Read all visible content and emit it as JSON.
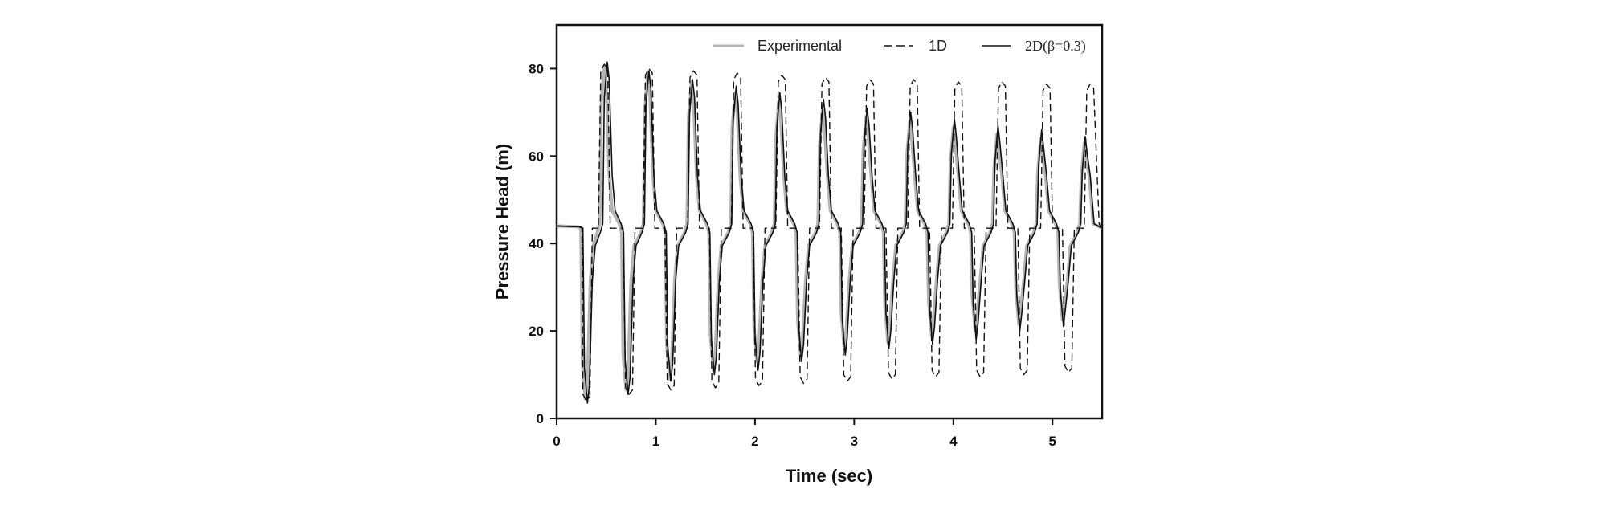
{
  "chart_data": {
    "type": "line",
    "title": "",
    "xlabel": "Time (sec)",
    "ylabel": "Pressure Head (m)",
    "xlim": [
      0,
      5.5
    ],
    "ylim": [
      0,
      90
    ],
    "xticks": [
      0,
      1,
      2,
      3,
      4,
      5
    ],
    "yticks": [
      0,
      20,
      40,
      60,
      80
    ],
    "xtick_labels": [
      "0",
      "1",
      "2",
      "3",
      "4",
      "5"
    ],
    "ytick_labels": [
      "0",
      "20",
      "40",
      "60",
      "80"
    ],
    "grid": false,
    "legend_position": "top-right",
    "steady_head": 43.5,
    "series": [
      {
        "name": "Experimental",
        "style": "solid-gray",
        "color": "#b5b5b5",
        "peaks": [
          {
            "t": 0.29,
            "v": 4.5
          },
          {
            "t": 0.48,
            "v": 80.5
          },
          {
            "t": 0.7,
            "v": 6.5
          },
          {
            "t": 0.92,
            "v": 79.0
          },
          {
            "t": 1.14,
            "v": 9.0
          },
          {
            "t": 1.36,
            "v": 77.0
          },
          {
            "t": 1.58,
            "v": 11.0
          },
          {
            "t": 1.8,
            "v": 74.5
          },
          {
            "t": 2.02,
            "v": 13.0
          },
          {
            "t": 2.24,
            "v": 72.5
          },
          {
            "t": 2.46,
            "v": 14.5
          },
          {
            "t": 2.68,
            "v": 70.5
          },
          {
            "t": 2.9,
            "v": 16.0
          },
          {
            "t": 3.12,
            "v": 69.0
          },
          {
            "t": 3.34,
            "v": 17.5
          },
          {
            "t": 3.56,
            "v": 68.0
          },
          {
            "t": 3.78,
            "v": 19.0
          },
          {
            "t": 4.0,
            "v": 66.5
          },
          {
            "t": 4.22,
            "v": 20.0
          },
          {
            "t": 4.44,
            "v": 65.0
          },
          {
            "t": 4.66,
            "v": 21.5
          },
          {
            "t": 4.88,
            "v": 64.0
          },
          {
            "t": 5.1,
            "v": 22.5
          },
          {
            "t": 5.32,
            "v": 63.0
          }
        ]
      },
      {
        "name": "1D",
        "style": "dashed",
        "color": "#111111",
        "peaks": [
          {
            "t": 0.3,
            "v": 4.0
          },
          {
            "t": 0.48,
            "v": 81.0
          },
          {
            "t": 0.73,
            "v": 5.5
          },
          {
            "t": 0.93,
            "v": 80.0
          },
          {
            "t": 1.15,
            "v": 6.5
          },
          {
            "t": 1.38,
            "v": 79.5
          },
          {
            "t": 1.6,
            "v": 7.0
          },
          {
            "t": 1.82,
            "v": 79.0
          },
          {
            "t": 2.04,
            "v": 7.5
          },
          {
            "t": 2.27,
            "v": 78.5
          },
          {
            "t": 2.49,
            "v": 8.0
          },
          {
            "t": 2.71,
            "v": 78.0
          },
          {
            "t": 2.93,
            "v": 8.5
          },
          {
            "t": 3.16,
            "v": 77.5
          },
          {
            "t": 3.38,
            "v": 9.0
          },
          {
            "t": 3.6,
            "v": 77.5
          },
          {
            "t": 3.82,
            "v": 9.5
          },
          {
            "t": 4.05,
            "v": 77.0
          },
          {
            "t": 4.27,
            "v": 9.5
          },
          {
            "t": 4.49,
            "v": 77.0
          },
          {
            "t": 4.71,
            "v": 10.0
          },
          {
            "t": 4.94,
            "v": 76.5
          },
          {
            "t": 5.16,
            "v": 10.5
          },
          {
            "t": 5.38,
            "v": 76.5
          }
        ]
      },
      {
        "name": "2D(β=0.3)",
        "style": "solid-black",
        "color": "#111111",
        "peaks": [
          {
            "t": 0.31,
            "v": 3.5
          },
          {
            "t": 0.51,
            "v": 81.5
          },
          {
            "t": 0.72,
            "v": 5.5
          },
          {
            "t": 0.93,
            "v": 79.5
          },
          {
            "t": 1.15,
            "v": 8.5
          },
          {
            "t": 1.37,
            "v": 77.5
          },
          {
            "t": 1.59,
            "v": 10.0
          },
          {
            "t": 1.81,
            "v": 76.0
          },
          {
            "t": 2.03,
            "v": 11.0
          },
          {
            "t": 2.25,
            "v": 74.5
          },
          {
            "t": 2.47,
            "v": 13.0
          },
          {
            "t": 2.69,
            "v": 73.0
          },
          {
            "t": 2.91,
            "v": 14.5
          },
          {
            "t": 3.13,
            "v": 71.0
          },
          {
            "t": 3.35,
            "v": 16.0
          },
          {
            "t": 3.57,
            "v": 70.0
          },
          {
            "t": 3.79,
            "v": 17.0
          },
          {
            "t": 4.01,
            "v": 68.5
          },
          {
            "t": 4.23,
            "v": 18.0
          },
          {
            "t": 4.45,
            "v": 67.0
          },
          {
            "t": 4.67,
            "v": 20.0
          },
          {
            "t": 4.89,
            "v": 66.0
          },
          {
            "t": 5.11,
            "v": 21.0
          },
          {
            "t": 5.33,
            "v": 64.5
          }
        ]
      }
    ]
  },
  "legend": {
    "experimental": "Experimental",
    "oned": "1D",
    "twod": "2D(β=0.3)"
  }
}
